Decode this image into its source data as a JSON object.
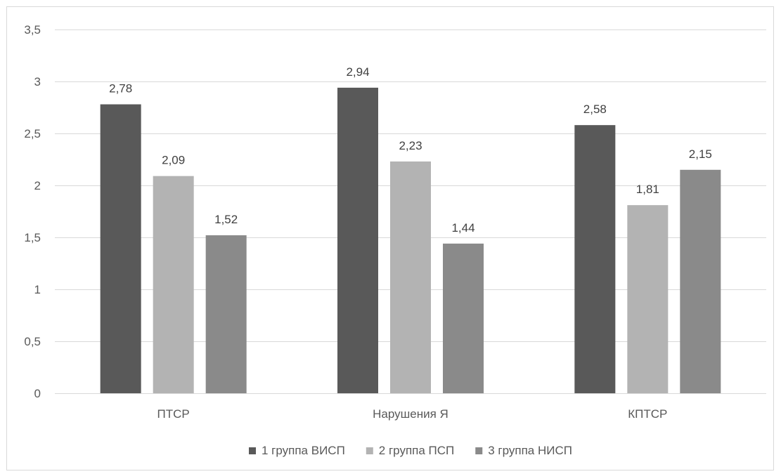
{
  "chart_data": {
    "type": "bar",
    "categories": [
      "ПТСР",
      "Нарушения Я",
      "КПТСР"
    ],
    "series": [
      {
        "name": "1 группа ВИСП",
        "color": "#595959",
        "values": [
          2.78,
          2.94,
          2.58
        ],
        "labels": [
          "2,78",
          "2,94",
          "2,58"
        ]
      },
      {
        "name": "2 группа ПСП",
        "color": "#b3b3b3",
        "values": [
          2.09,
          2.23,
          1.81
        ],
        "labels": [
          "2,09",
          "2,23",
          "1,81"
        ]
      },
      {
        "name": "3 группа НИСП",
        "color": "#8a8a8a",
        "values": [
          1.52,
          1.44,
          2.15
        ],
        "labels": [
          "1,52",
          "1,44",
          "2,15"
        ]
      }
    ],
    "ylim": [
      0,
      3.5
    ],
    "y_ticks": [
      0,
      0.5,
      1,
      1.5,
      2,
      2.5,
      3,
      3.5
    ],
    "y_tick_labels": [
      "0",
      "0,5",
      "1",
      "1,5",
      "2",
      "2,5",
      "3",
      "3,5"
    ],
    "grid": true,
    "legend_position": "bottom"
  }
}
